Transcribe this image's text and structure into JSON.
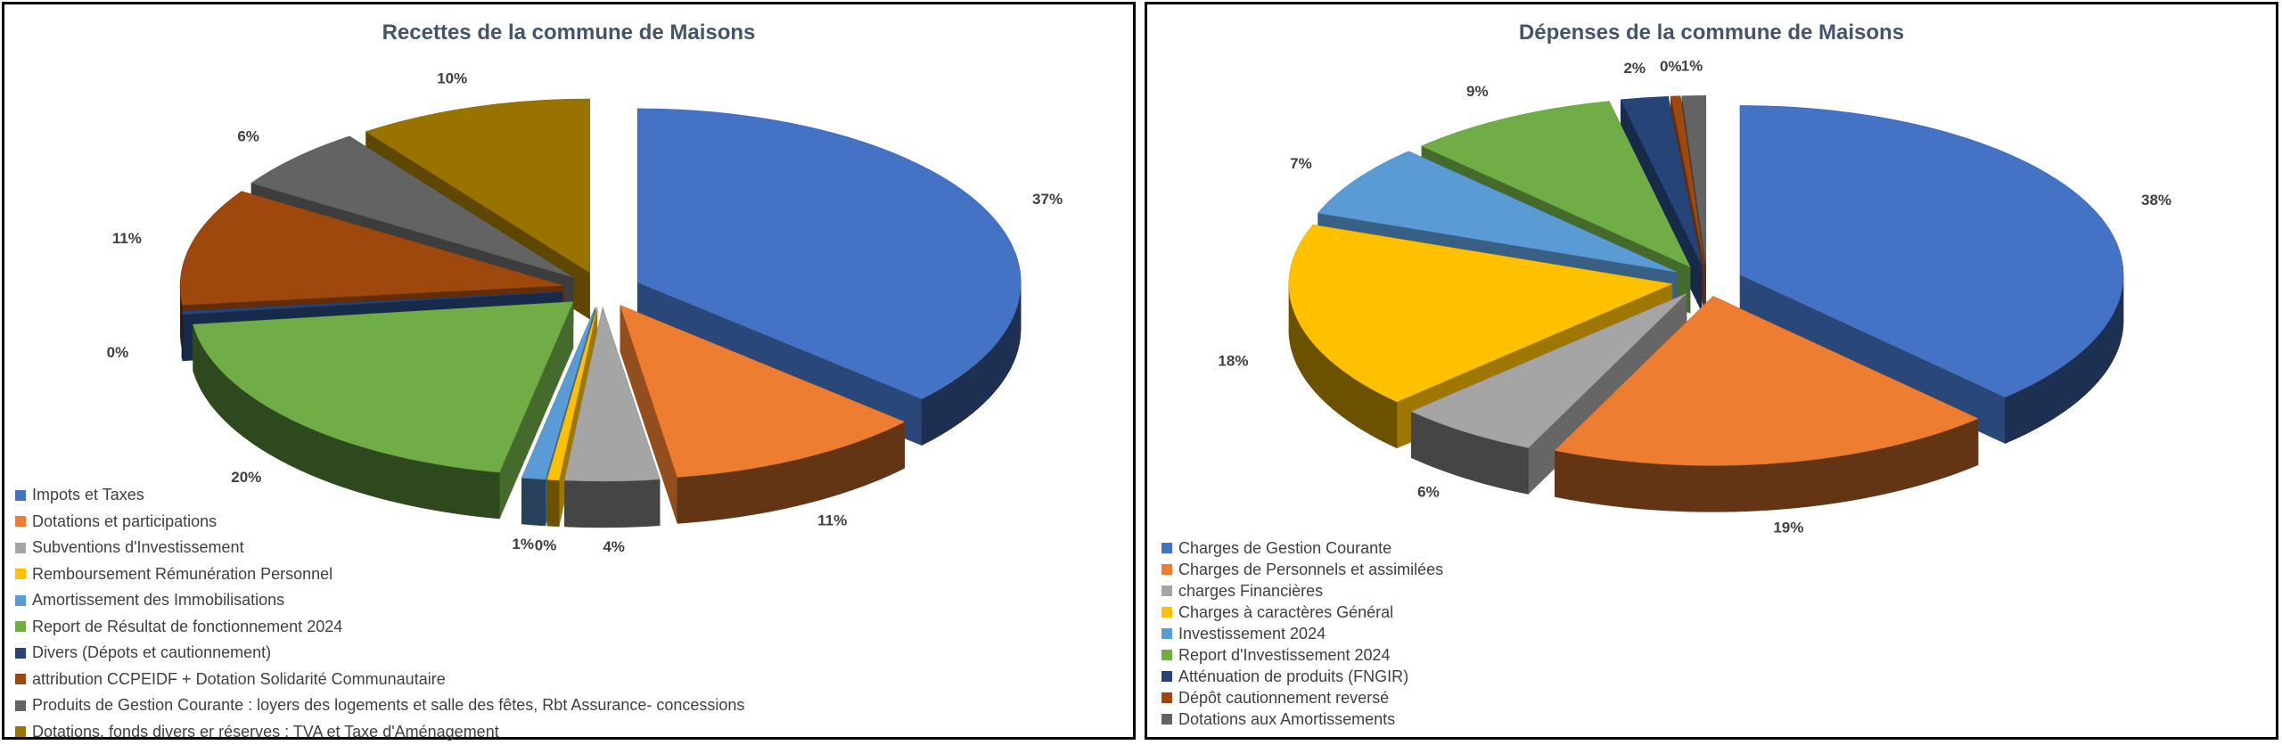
{
  "chart_data": [
    {
      "type": "pie",
      "title": "Recettes de la commune de Maisons",
      "categories": [
        "Impots et Taxes",
        "Dotations et participations",
        "Subventions d'Investissement",
        "Remboursement Rémunération Personnel",
        "Amortissement des  Immobilisations",
        "Report de Résultat de fonctionnement 2024",
        "Divers (Dépots et cautionnement)",
        "attribution CCPEIDF + Dotation Solidarité Communautaire",
        "Produits de Gestion Courante : loyers des logements et salle des fêtes, Rbt Assurance- concessions",
        "Dotations, fonds divers er réserves : TVA et Taxe d'Aménagement"
      ],
      "values": [
        37,
        11,
        4,
        0.5,
        1,
        20,
        0.3,
        11,
        6,
        10
      ],
      "value_labels": [
        "37%",
        "11%",
        "4%",
        "0%",
        "1%",
        "20%",
        "0%",
        "11%",
        "6%",
        "10%"
      ],
      "colors": [
        "#4472c4",
        "#ed7d31",
        "#a5a5a5",
        "#ffc000",
        "#5b9bd5",
        "#70ad47",
        "#264478",
        "#9e480e",
        "#636363",
        "#997300"
      ],
      "legend_position": "bottom-left",
      "exploded": true,
      "three_d": true
    },
    {
      "type": "pie",
      "title": "Dépenses de la commune de Maisons",
      "categories": [
        "Charges de Gestion Courante",
        "Charges de Personnels et assimilées",
        "charges Financières",
        "Charges à caractères Général",
        "Investissement 2024",
        "Report d'Investissement 2024",
        "Atténuation de produits (FNGIR)",
        "Dépôt cautionnement reversé",
        "Dotations aux Amortissements"
      ],
      "values": [
        38,
        19,
        6,
        18,
        7,
        9,
        2,
        0.4,
        1
      ],
      "value_labels": [
        "38%",
        "19%",
        "6%",
        "18%",
        "7%",
        "9%",
        "2%",
        "0%",
        "1%"
      ],
      "colors": [
        "#4472c4",
        "#ed7d31",
        "#a5a5a5",
        "#ffc000",
        "#5b9bd5",
        "#70ad47",
        "#264478",
        "#9e480e",
        "#636363"
      ],
      "legend_position": "bottom-left",
      "exploded": true,
      "three_d": true
    }
  ]
}
